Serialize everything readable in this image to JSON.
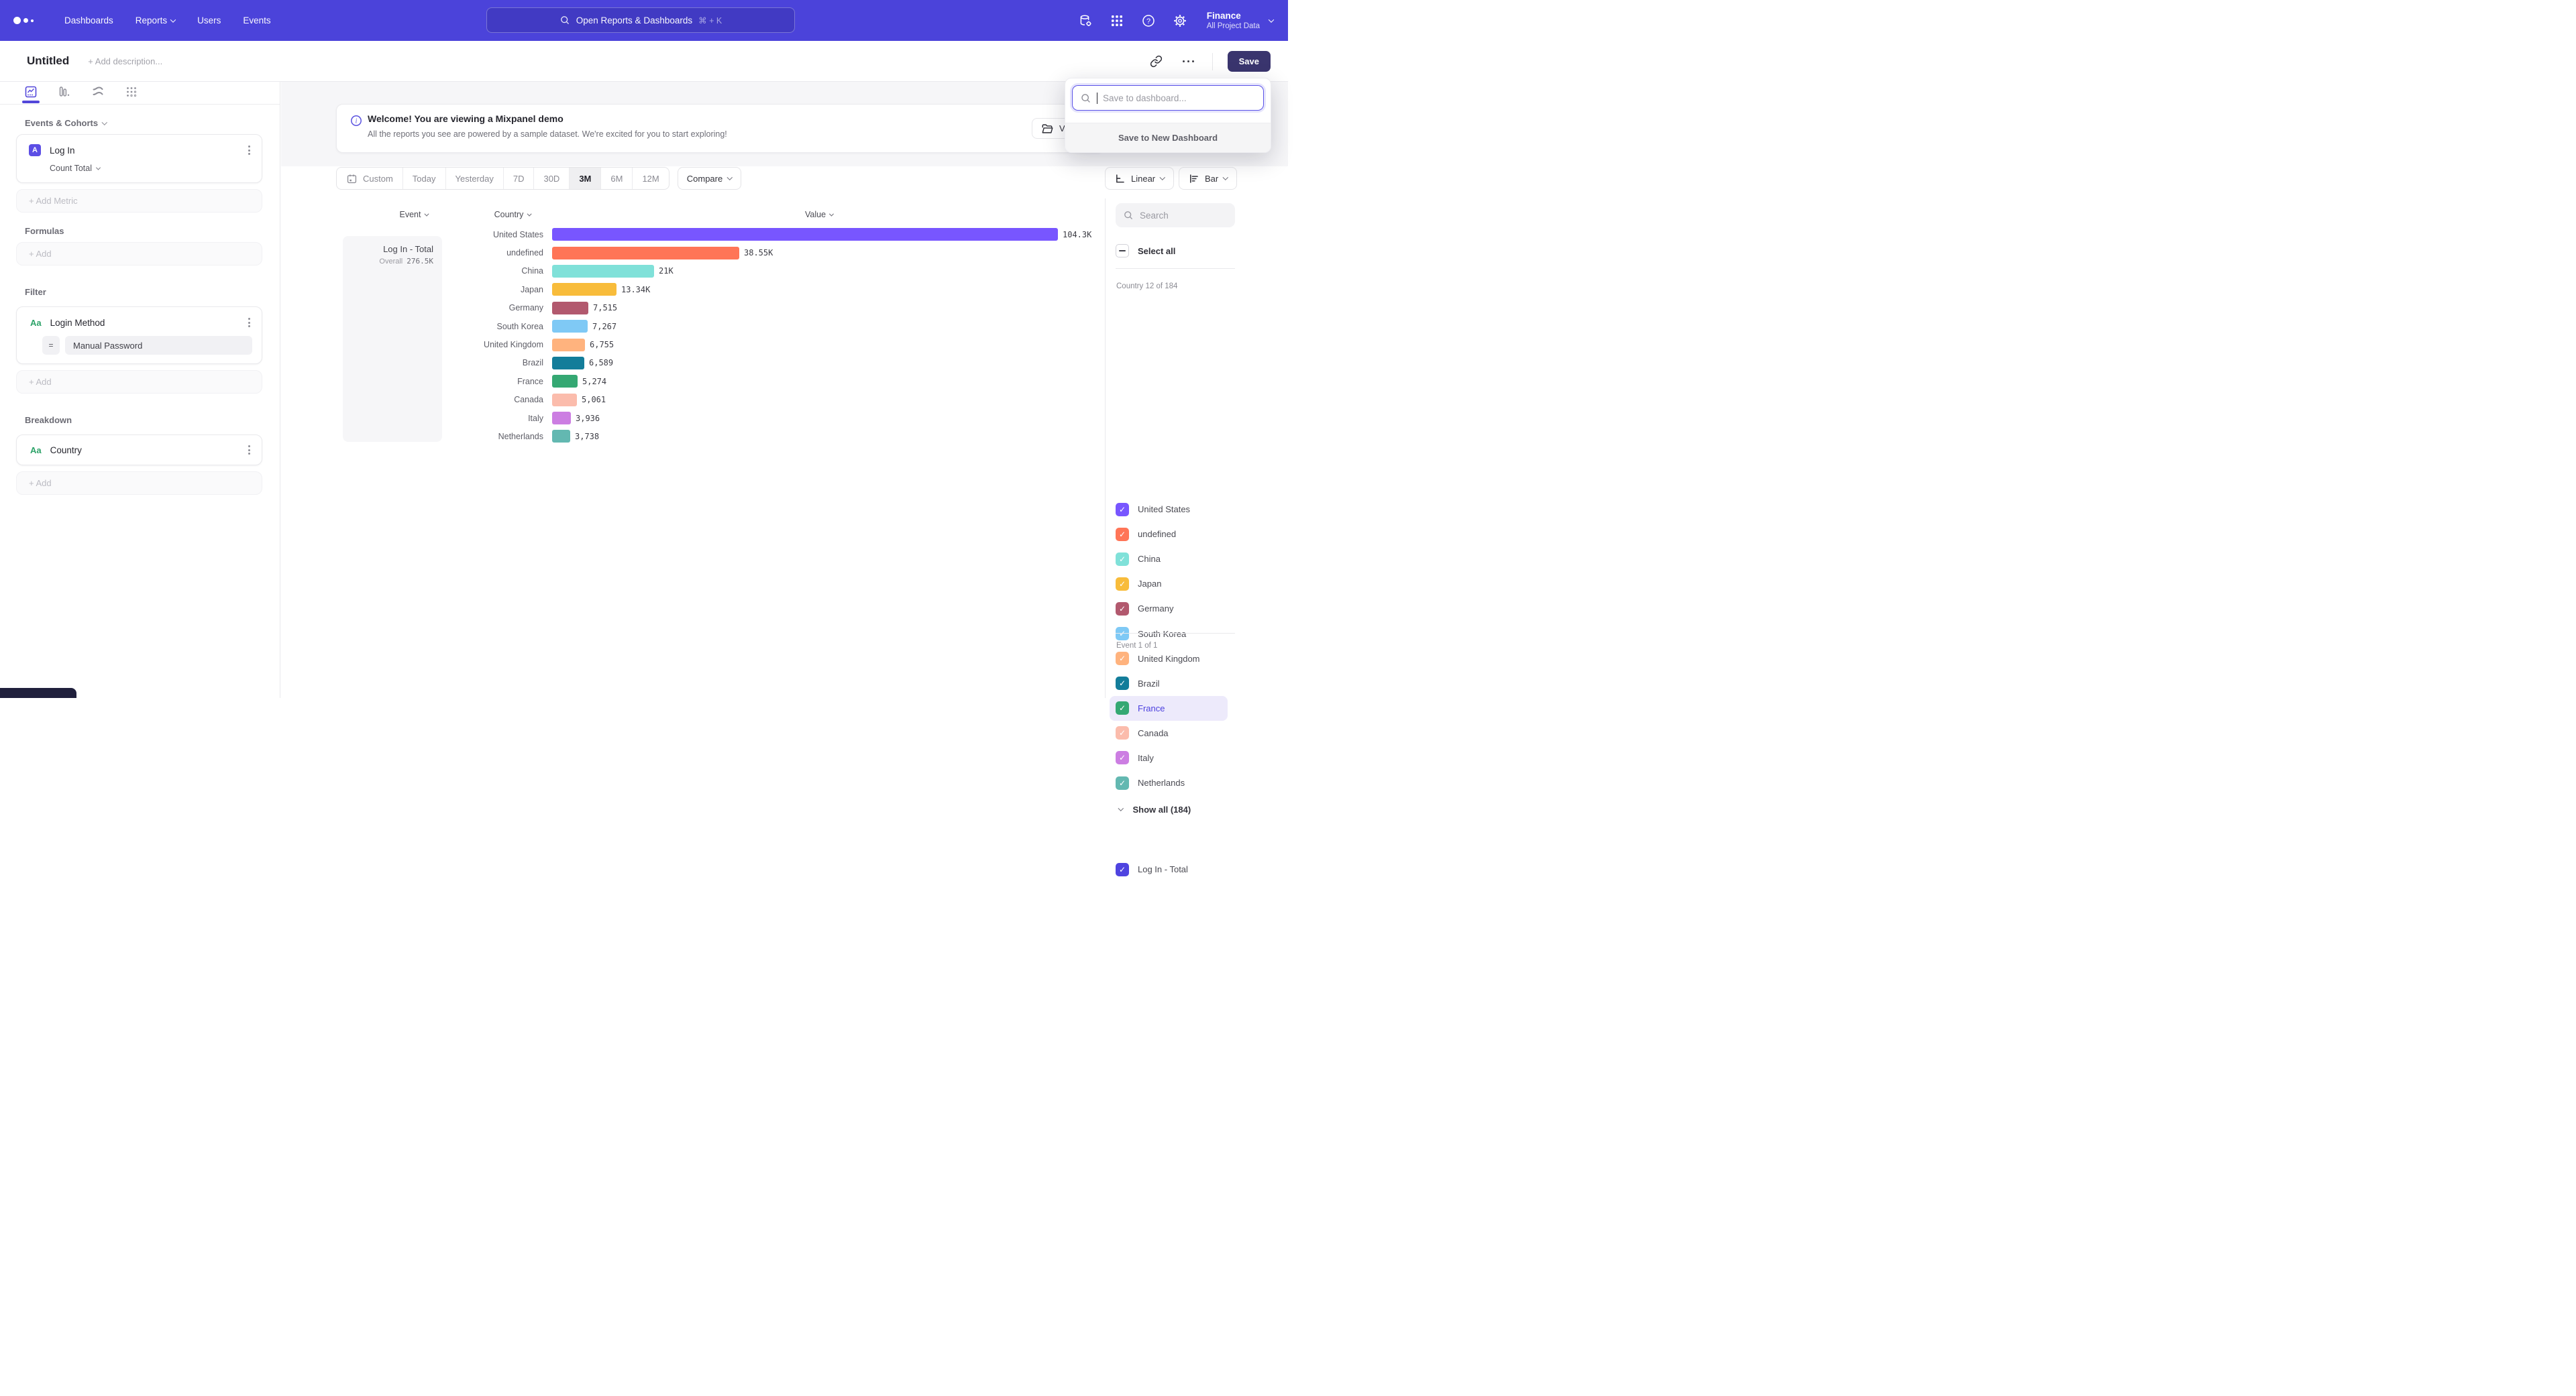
{
  "accent": "#4F44E0",
  "nav": {
    "links": [
      {
        "label": "Dashboards",
        "chevron": false
      },
      {
        "label": "Reports",
        "chevron": true
      },
      {
        "label": "Users",
        "chevron": false
      },
      {
        "label": "Events",
        "chevron": false
      }
    ],
    "search_placeholder": "Open Reports & Dashboards",
    "search_shortcut": "⌘ + K",
    "project_name": "Finance",
    "project_scope": "All Project Data"
  },
  "title_bar": {
    "title": "Untitled",
    "description_placeholder": "+ Add description...",
    "save_label": "Save"
  },
  "sidebar": {
    "section_events": "Events & Cohorts",
    "metric": {
      "badge": "A",
      "event": "Log In",
      "aggregation": "Count Total"
    },
    "add_metric": "+ Add Metric",
    "section_formulas": "Formulas",
    "add": "+ Add",
    "section_filter": "Filter",
    "filter": {
      "type": "Aa",
      "property": "Login Method",
      "operator": "=",
      "value": "Manual Password"
    },
    "section_breakdown": "Breakdown",
    "breakdown": {
      "type": "Aa",
      "property": "Country"
    }
  },
  "banner": {
    "title": "Welcome! You are viewing a Mixpanel demo",
    "subtitle": "All the reports you see are powered by a sample dataset. We're excited for you to start exploring!",
    "action_label": "V"
  },
  "toolbar": {
    "ranges": [
      {
        "label": "Custom",
        "icon": "calendar",
        "active": false
      },
      {
        "label": "Today",
        "active": false
      },
      {
        "label": "Yesterday",
        "active": false
      },
      {
        "label": "7D",
        "active": false
      },
      {
        "label": "30D",
        "active": false
      },
      {
        "label": "3M",
        "active": true
      },
      {
        "label": "6M",
        "active": false
      },
      {
        "label": "12M",
        "active": false
      }
    ],
    "compare_label": "Compare",
    "view_scale_label": "Linear",
    "chart_type_label": "Bar"
  },
  "chart": {
    "headers": {
      "event": "Event",
      "country": "Country",
      "value": "Value"
    },
    "event_cell": {
      "title": "Log In - Total",
      "overall_label": "Overall",
      "overall_value": "276.5K"
    },
    "max_value": 104300,
    "rows": [
      {
        "country": "United States",
        "value": 104300,
        "label": "104.3K",
        "color": "#7856FF"
      },
      {
        "country": "undefined",
        "value": 38550,
        "label": "38.55K",
        "color": "#FF7557"
      },
      {
        "country": "China",
        "value": 21000,
        "label": "21K",
        "color": "#80E1D9"
      },
      {
        "country": "Japan",
        "value": 13340,
        "label": "13.34K",
        "color": "#F8BC3B"
      },
      {
        "country": "Germany",
        "value": 7515,
        "label": "7,515",
        "color": "#B2596E"
      },
      {
        "country": "South Korea",
        "value": 7267,
        "label": "7,267",
        "color": "#7FC9F5"
      },
      {
        "country": "United Kingdom",
        "value": 6755,
        "label": "6,755",
        "color": "#FFB37E"
      },
      {
        "country": "Brazil",
        "value": 6589,
        "label": "6,589",
        "color": "#137D9A"
      },
      {
        "country": "France",
        "value": 5274,
        "label": "5,274",
        "color": "#35A873"
      },
      {
        "country": "Canada",
        "value": 5061,
        "label": "5,061",
        "color": "#FBBCAC"
      },
      {
        "country": "Italy",
        "value": 3936,
        "label": "3,936",
        "color": "#CC7EE2"
      },
      {
        "country": "Netherlands",
        "value": 3738,
        "label": "3,738",
        "color": "#63B8B1"
      }
    ]
  },
  "right_panel": {
    "search_placeholder": "Search",
    "select_all": "Select all",
    "country_group_label": "Country 12 of 184",
    "countries": [
      {
        "label": "United States",
        "color": "#7856FF",
        "checked": true,
        "highlighted": false
      },
      {
        "label": "undefined",
        "color": "#FF7557",
        "checked": true,
        "highlighted": false
      },
      {
        "label": "China",
        "color": "#80E1D9",
        "checked": true,
        "highlighted": false
      },
      {
        "label": "Japan",
        "color": "#F8BC3B",
        "checked": true,
        "highlighted": false
      },
      {
        "label": "Germany",
        "color": "#B2596E",
        "checked": true,
        "highlighted": false
      },
      {
        "label": "South Korea",
        "color": "#7FC9F5",
        "checked": true,
        "highlighted": false
      },
      {
        "label": "United Kingdom",
        "color": "#FFB37E",
        "checked": true,
        "highlighted": false
      },
      {
        "label": "Brazil",
        "color": "#137D9A",
        "checked": true,
        "highlighted": false
      },
      {
        "label": "France",
        "color": "#35A873",
        "checked": true,
        "highlighted": true
      },
      {
        "label": "Canada",
        "color": "#FBBCAC",
        "checked": true,
        "highlighted": false
      },
      {
        "label": "Italy",
        "color": "#CC7EE2",
        "checked": true,
        "highlighted": false
      },
      {
        "label": "Netherlands",
        "color": "#63B8B1",
        "checked": true,
        "highlighted": false
      }
    ],
    "show_all": "Show all (184)",
    "event_group_label": "Event 1 of 1",
    "events": [
      {
        "label": "Log In - Total",
        "color": "#4F44E0",
        "checked": true
      }
    ]
  },
  "save_popup": {
    "placeholder": "Save to dashboard...",
    "new_dashboard": "Save to New Dashboard"
  }
}
